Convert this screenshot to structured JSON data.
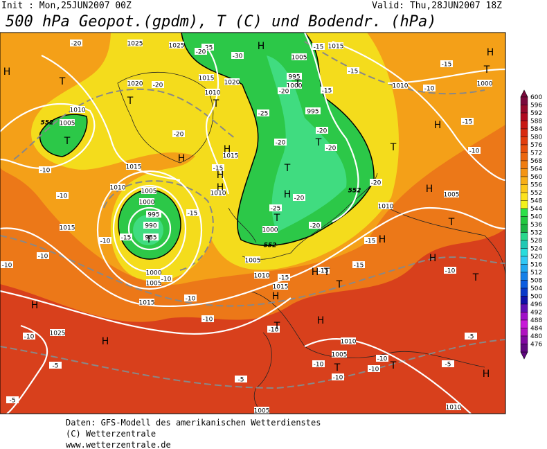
{
  "header": {
    "init": "Init : Mon,25JUN2007 00Z",
    "valid": "Valid: Thu,28JUN2007 18Z",
    "title": "500 hPa Geopot.(gpdm), T (C) und Bodendr. (hPa)"
  },
  "legend": {
    "values": [
      600,
      596,
      592,
      588,
      584,
      580,
      576,
      572,
      568,
      564,
      560,
      556,
      552,
      548,
      544,
      540,
      536,
      532,
      528,
      524,
      520,
      516,
      512,
      508,
      504,
      500,
      496,
      492,
      488,
      484,
      480,
      476
    ],
    "colors": [
      "#7a0a3c",
      "#960a2c",
      "#b00a20",
      "#c81814",
      "#d82a10",
      "#e23c0c",
      "#e8500c",
      "#ec660e",
      "#f07c10",
      "#f49412",
      "#f8ae16",
      "#fcc81a",
      "#fce21c",
      "#f2f21c",
      "#2ce048",
      "#22c840",
      "#1cb444",
      "#28d88c",
      "#20c8b4",
      "#28dcdc",
      "#30c8f4",
      "#20a8f0",
      "#1480e8",
      "#0c5ce0",
      "#0838c8",
      "#1010a8",
      "#6010b4",
      "#a010c8",
      "#c818d8",
      "#b010c0",
      "#8008a0",
      "#600880"
    ]
  },
  "map_labels": {
    "pressure": [
      "1025",
      "1025",
      "1005",
      "1015",
      "995",
      "1000",
      "1020",
      "1020",
      "1015",
      "1010",
      "1010",
      "1005",
      "1010",
      "1000",
      "995",
      "1015",
      "1010",
      "1015",
      "1010",
      "1005",
      "1000",
      "995",
      "990",
      "985",
      "1015",
      "1010",
      "1005",
      "1000",
      "1005",
      "1010",
      "1015",
      "1000",
      "1005",
      "1015",
      "1025",
      "1010",
      "1005",
      "1005",
      "1010"
    ],
    "temperature": [
      "-20",
      "-25",
      "-30",
      "-15",
      "-15",
      "-15",
      "-20",
      "-20",
      "-15",
      "-20",
      "-20",
      "-25",
      "-20",
      "-10",
      "-15",
      "-10",
      "-20",
      "-15",
      "-15",
      "-25",
      "-20",
      "-20",
      "-10",
      "-10",
      "-10",
      "-15",
      "-20",
      "-15",
      "-15",
      "-10",
      "-15",
      "-10",
      "-10",
      "-10",
      "-10",
      "-10",
      "-5",
      "-5",
      "-10",
      "-10",
      "-10",
      "-10",
      "-5",
      "-5",
      "-10",
      "-5",
      "-15",
      "-20",
      "-10"
    ],
    "geopotential": [
      "552",
      "552",
      "552"
    ],
    "highs": [
      "H",
      "H",
      "H",
      "H",
      "H",
      "H",
      "H",
      "H",
      "H",
      "H",
      "H",
      "H",
      "H",
      "H",
      "H",
      "H",
      "H",
      "H"
    ],
    "lows": [
      "T",
      "T",
      "T",
      "T",
      "T",
      "T",
      "T",
      "T",
      "T",
      "T",
      "T",
      "T",
      "T",
      "T",
      "T",
      "T",
      "T",
      "T"
    ]
  },
  "footer": {
    "lines": [
      "Daten: GFS-Modell des amerikanischen Wetterdienstes",
      "(C) Wetterzentrale",
      "www.wetterzentrale.de"
    ]
  }
}
